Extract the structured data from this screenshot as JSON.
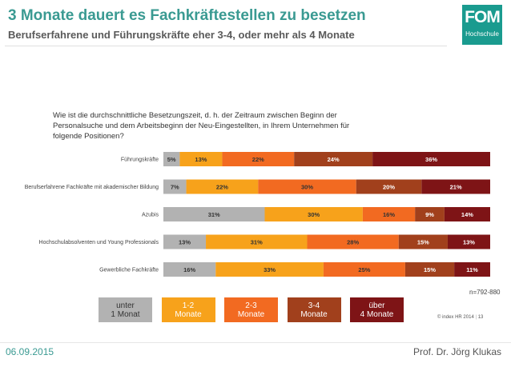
{
  "header": {
    "title": "3 Monate dauert es Fachkräftestellen zu besetzen",
    "subtitle": "Berufserfahrene und Führungskräfte eher 3-4, oder mehr als 4 Monate"
  },
  "logo": {
    "brand": "FOM",
    "sub": "Hochschule"
  },
  "question": "Wie ist die durchschnittliche Besetzungszeit, d. h. der Zeitraum zwischen Beginn der Personalsuche und dem Arbeitsbeginn der Neu-Eingestellten, in Ihrem Unternehmen für folgende Positionen?",
  "chart_data": {
    "type": "bar",
    "orientation": "horizontal",
    "stacked": true,
    "categories": [
      "Führungskräfte",
      "Berufserfahrene Fachkräfte mit akademischer Bildung",
      "Azubis",
      "Hochschulabsolventen und Young Professionals",
      "Gewerbliche Fachkräfte"
    ],
    "series": [
      {
        "name": "unter 1 Monat",
        "color": "#b2b2b2",
        "text_color": "#333333",
        "values": [
          5,
          7,
          31,
          13,
          16
        ]
      },
      {
        "name": "1-2 Monate",
        "color": "#f7a21b",
        "text_color": "#333333",
        "values": [
          13,
          22,
          30,
          31,
          33
        ]
      },
      {
        "name": "2-3 Monate",
        "color": "#f26a21",
        "text_color": "#333333",
        "values": [
          22,
          30,
          16,
          28,
          25
        ]
      },
      {
        "name": "3-4 Monate",
        "color": "#a1401c",
        "text_color": "#ffffff",
        "values": [
          24,
          20,
          9,
          15,
          15
        ]
      },
      {
        "name": "über 4 Monate",
        "color": "#7e1416",
        "text_color": "#ffffff",
        "values": [
          36,
          21,
          14,
          13,
          11
        ]
      }
    ],
    "value_suffix": "%",
    "xlim": [
      0,
      100
    ],
    "note": "n=792-880"
  },
  "legend": [
    {
      "line1": "unter",
      "line2": "1 Monat",
      "color": "#b2b2b2",
      "text_color": "#333333"
    },
    {
      "line1": "1-2",
      "line2": "Monate",
      "color": "#f7a21b",
      "text_color": "#ffffff"
    },
    {
      "line1": "2-3",
      "line2": "Monate",
      "color": "#f26a21",
      "text_color": "#ffffff"
    },
    {
      "line1": "3-4",
      "line2": "Monate",
      "color": "#a1401c",
      "text_color": "#ffffff"
    },
    {
      "line1": "über",
      "line2": "4 Monate",
      "color": "#7e1416",
      "text_color": "#ffffff"
    }
  ],
  "source": "© index HR 2014",
  "page_number": "13",
  "footer": {
    "date": "06.09.2015",
    "author": "Prof. Dr. Jörg Klukas"
  }
}
